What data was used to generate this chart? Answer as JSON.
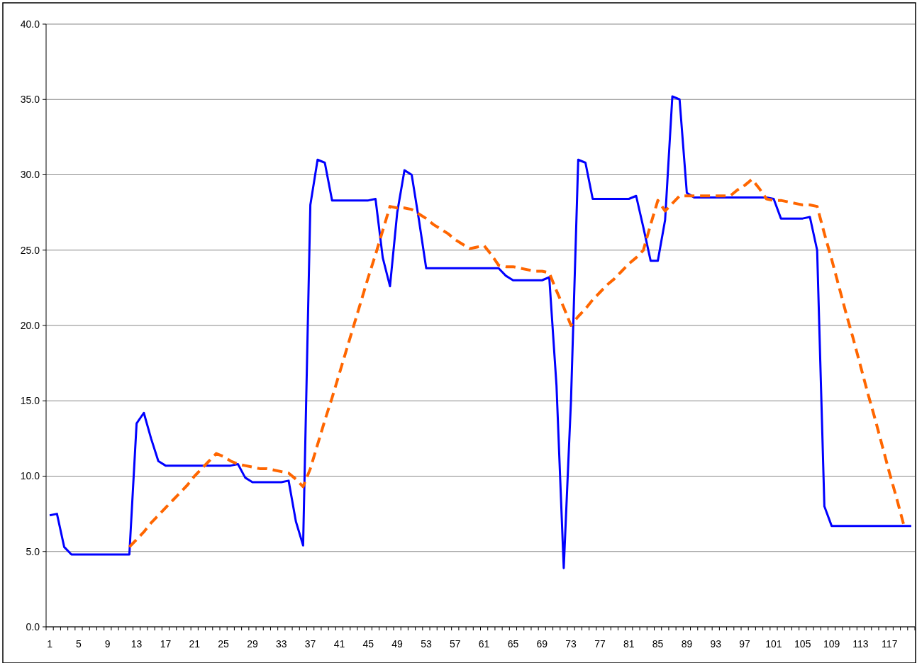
{
  "chart_data": {
    "type": "line",
    "categories": [
      "1",
      null,
      null,
      null,
      "5",
      null,
      null,
      null,
      "9",
      null,
      null,
      null,
      "13",
      null,
      null,
      null,
      "17",
      null,
      null,
      null,
      "21",
      null,
      null,
      null,
      "25",
      null,
      null,
      null,
      "29",
      null,
      null,
      null,
      "33",
      null,
      null,
      null,
      "37",
      null,
      null,
      null,
      "41",
      null,
      null,
      null,
      "45",
      null,
      null,
      null,
      "49",
      null,
      null,
      null,
      "53",
      null,
      null,
      null,
      "57",
      null,
      null,
      null,
      "61",
      null,
      null,
      null,
      "65",
      null,
      null,
      null,
      "69",
      null,
      null,
      null,
      "73",
      null,
      null,
      null,
      "77",
      null,
      null,
      null,
      "81",
      null,
      null,
      null,
      "85",
      null,
      null,
      null,
      "89",
      null,
      null,
      null,
      "93",
      null,
      null,
      null,
      "97",
      null,
      null,
      null,
      "101",
      null,
      null,
      null,
      "105",
      null,
      null,
      null,
      "109",
      null,
      null,
      null,
      "113",
      null,
      null,
      null,
      "117",
      null,
      null,
      null
    ],
    "series": [
      {
        "color": "#0000ff",
        "line_style": "solid",
        "values": [
          7.4,
          7.5,
          5.3,
          4.8,
          4.8,
          4.8,
          4.8,
          4.8,
          4.8,
          4.8,
          4.8,
          4.8,
          13.5,
          14.2,
          12.5,
          11.0,
          10.7,
          10.7,
          10.7,
          10.7,
          10.7,
          10.7,
          10.7,
          10.7,
          10.7,
          10.7,
          10.8,
          9.9,
          9.6,
          9.6,
          9.6,
          9.6,
          9.6,
          9.7,
          7.0,
          5.4,
          28.0,
          31.0,
          30.8,
          28.3,
          28.3,
          28.3,
          28.3,
          28.3,
          28.3,
          28.4,
          24.5,
          22.6,
          27.5,
          30.3,
          30.0,
          27.0,
          23.8,
          23.8,
          23.8,
          23.8,
          23.8,
          23.8,
          23.8,
          23.8,
          23.8,
          23.8,
          23.8,
          23.3,
          23.0,
          23.0,
          23.0,
          23.0,
          23.0,
          23.2,
          16.0,
          3.9,
          15.0,
          31.0,
          30.8,
          28.4,
          28.4,
          28.4,
          28.4,
          28.4,
          28.4,
          28.6,
          26.5,
          24.3,
          24.3,
          27.0,
          35.2,
          35.0,
          28.8,
          28.5,
          28.5,
          28.5,
          28.5,
          28.5,
          28.5,
          28.5,
          28.5,
          28.5,
          28.5,
          28.5,
          28.4,
          27.1,
          27.1,
          27.1,
          27.1,
          27.2,
          25.0,
          8.0,
          6.7,
          6.7,
          6.7,
          6.7,
          6.7,
          6.7,
          6.7,
          6.7,
          6.7,
          6.7,
          6.7,
          6.7
        ]
      },
      {
        "color": "#ff6600",
        "line_style": "dashed",
        "values": [
          null,
          null,
          null,
          null,
          null,
          null,
          null,
          null,
          null,
          null,
          null,
          5.3,
          5.8,
          6.3,
          6.9,
          7.4,
          7.9,
          8.4,
          8.9,
          9.4,
          10.0,
          10.5,
          11.0,
          11.5,
          11.3,
          11.0,
          10.8,
          10.7,
          10.6,
          10.5,
          10.5,
          10.4,
          10.3,
          10.2,
          9.8,
          9.3,
          10.5,
          12.1,
          13.7,
          15.2,
          16.8,
          18.4,
          20.0,
          21.6,
          23.2,
          24.7,
          26.3,
          27.9,
          27.8,
          27.8,
          27.7,
          27.4,
          27.1,
          26.7,
          26.4,
          26.1,
          25.7,
          25.4,
          25.1,
          25.2,
          25.3,
          24.7,
          24.0,
          23.9,
          23.9,
          23.8,
          23.7,
          23.6,
          23.6,
          23.5,
          22.3,
          21.2,
          20.0,
          20.6,
          21.1,
          21.7,
          22.2,
          22.7,
          23.1,
          23.6,
          24.1,
          24.5,
          25.0,
          26.7,
          28.3,
          27.6,
          28.1,
          28.6,
          28.6,
          28.6,
          28.6,
          28.6,
          28.6,
          28.6,
          28.6,
          29.0,
          29.3,
          29.7,
          29.1,
          28.4,
          28.3,
          28.3,
          28.2,
          28.1,
          28.0,
          28.0,
          27.9,
          26.1,
          24.4,
          22.6,
          20.8,
          19.1,
          17.3,
          15.5,
          13.8,
          12.0,
          10.2,
          8.5,
          6.7,
          null
        ]
      }
    ],
    "ylim": [
      0,
      40
    ],
    "yticks": [
      {
        "value": 0,
        "label": "0.0"
      },
      {
        "value": 5,
        "label": "5.0"
      },
      {
        "value": 10,
        "label": "10.0"
      },
      {
        "value": 15,
        "label": "15.0"
      },
      {
        "value": 20,
        "label": "20.0"
      },
      {
        "value": 25,
        "label": "25.0"
      },
      {
        "value": 30,
        "label": "30.0"
      },
      {
        "value": 35,
        "label": "35.0"
      },
      {
        "value": 40,
        "label": "40.0"
      }
    ],
    "grid": "y"
  }
}
